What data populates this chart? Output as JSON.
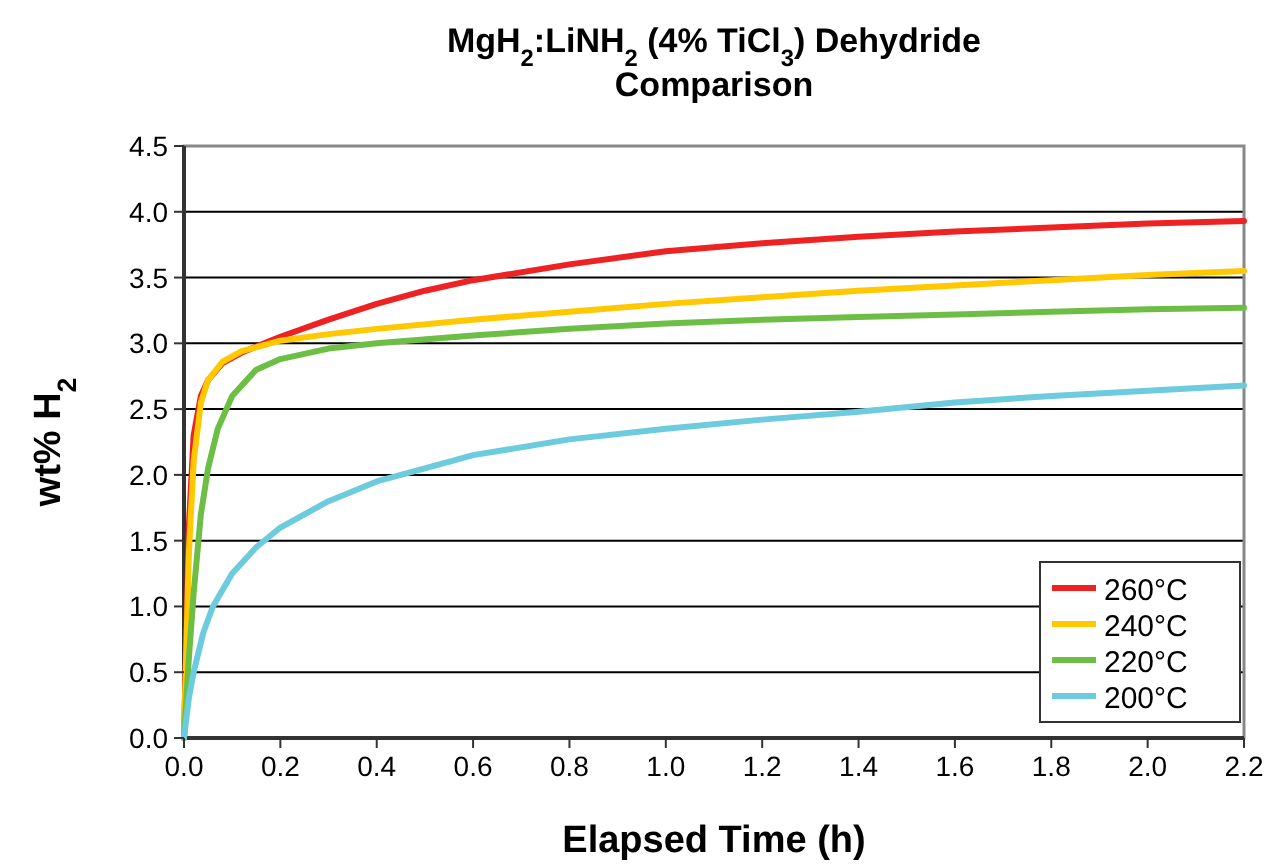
{
  "chart_data": {
    "type": "line",
    "title": "MgH$_{2}$:LiNH$_{2}$ (4% TiCl$_{3}$) Dehydride\nComparison",
    "xlabel": "Elapsed Time (h)",
    "ylabel": "wt% H$_{2}$",
    "xlim": [
      0,
      2.2
    ],
    "xticks": [
      {
        "value": 0,
        "label": "0.0"
      },
      0.2,
      0.4,
      0.6,
      0.8,
      {
        "value": 1,
        "label": "1.0"
      },
      1.2,
      1.4,
      1.6,
      1.8,
      {
        "value": 2,
        "label": "2.0"
      },
      2.2
    ],
    "ylim": [
      0,
      4.5
    ],
    "yticks": [
      {
        "value": 0,
        "label": "0.0"
      },
      0.5,
      {
        "value": 1,
        "label": "1.0"
      },
      1.5,
      {
        "value": 2,
        "label": "2.0"
      },
      2.5,
      {
        "value": 3,
        "label": "3.0"
      },
      3.5,
      {
        "value": 4,
        "label": "4.0"
      },
      4.5
    ],
    "grid": "y",
    "legend": "bottom right",
    "marker": "none",
    "line_style": "solid",
    "series": [
      {
        "name": "260°C",
        "color": "#ee2222",
        "x": [
          0,
          0.01,
          0.02,
          0.035,
          0.05,
          0.08,
          0.12,
          0.2,
          0.3,
          0.4,
          0.5,
          0.6,
          0.8,
          1.0,
          1.2,
          1.4,
          1.6,
          1.8,
          2.0,
          2.2
        ],
        "values": [
          0,
          1.6,
          2.3,
          2.6,
          2.72,
          2.85,
          2.93,
          3.05,
          3.18,
          3.3,
          3.4,
          3.48,
          3.6,
          3.7,
          3.76,
          3.81,
          3.85,
          3.88,
          3.91,
          3.93
        ]
      },
      {
        "name": "240°C",
        "color": "#ffc800",
        "x": [
          0,
          0.01,
          0.02,
          0.035,
          0.05,
          0.08,
          0.12,
          0.2,
          0.3,
          0.4,
          0.6,
          0.8,
          1.0,
          1.2,
          1.4,
          1.6,
          1.8,
          2.0,
          2.2
        ],
        "values": [
          0,
          1.4,
          2.1,
          2.55,
          2.72,
          2.86,
          2.94,
          3.02,
          3.07,
          3.11,
          3.18,
          3.24,
          3.3,
          3.35,
          3.4,
          3.44,
          3.48,
          3.52,
          3.55
        ]
      },
      {
        "name": "220°C",
        "color": "#6cbf44",
        "x": [
          0,
          0.01,
          0.02,
          0.035,
          0.05,
          0.07,
          0.1,
          0.15,
          0.2,
          0.3,
          0.4,
          0.6,
          0.8,
          1.0,
          1.2,
          1.4,
          1.6,
          1.8,
          2.0,
          2.2
        ],
        "values": [
          0,
          0.6,
          1.1,
          1.7,
          2.05,
          2.35,
          2.6,
          2.8,
          2.88,
          2.96,
          3.0,
          3.06,
          3.11,
          3.15,
          3.18,
          3.2,
          3.22,
          3.24,
          3.26,
          3.27
        ]
      },
      {
        "name": "200°C",
        "color": "#6ccbdc",
        "x": [
          0,
          0.01,
          0.02,
          0.04,
          0.06,
          0.1,
          0.15,
          0.2,
          0.3,
          0.4,
          0.5,
          0.6,
          0.8,
          1.0,
          1.2,
          1.4,
          1.6,
          1.8,
          2.0,
          2.2
        ],
        "values": [
          0,
          0.3,
          0.5,
          0.8,
          1.0,
          1.25,
          1.45,
          1.6,
          1.8,
          1.95,
          2.05,
          2.15,
          2.27,
          2.35,
          2.42,
          2.48,
          2.55,
          2.6,
          2.64,
          2.68
        ]
      }
    ]
  }
}
